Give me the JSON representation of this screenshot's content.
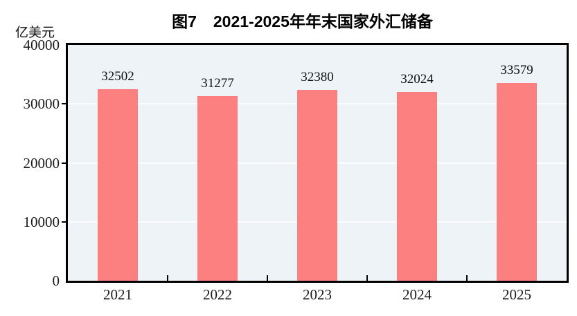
{
  "chart_data": {
    "type": "bar",
    "figure_label": "图7",
    "title": "2021-2025年年末国家外汇储备",
    "unit_label": "亿美元",
    "categories": [
      "2021",
      "2022",
      "2023",
      "2024",
      "2025"
    ],
    "values": [
      32502,
      31277,
      32380,
      32024,
      33579
    ],
    "value_labels": [
      "32502",
      "31277",
      "32380",
      "32024",
      "33579"
    ],
    "xlabel": "",
    "ylabel": "亿美元",
    "ylim": [
      0,
      40000
    ],
    "yticks": [
      0,
      10000,
      20000,
      30000,
      40000
    ],
    "ytick_labels": [
      "0",
      "10000",
      "20000",
      "30000",
      "40000"
    ],
    "grid": "horizontal gridlines at 10000, 20000, 30000 (white, behind bars)",
    "legend_position": "none",
    "colors": {
      "bar": "#fc8080",
      "plot_background": "#edf3f7",
      "gridline": "#fbfdfe",
      "axis_border": "#000000",
      "text": "#111111"
    }
  }
}
